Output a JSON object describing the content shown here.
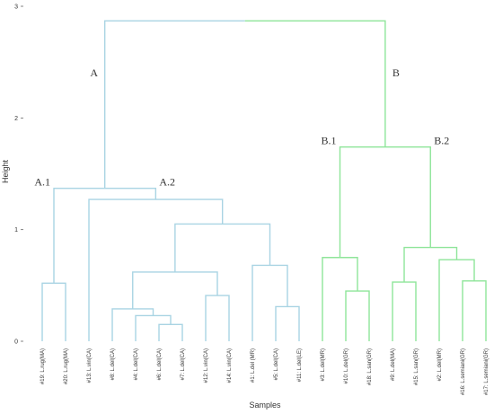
{
  "chart_data": {
    "type": "dendrogram",
    "title": "",
    "xlabel": "Samples",
    "ylabel": "Height",
    "ylim": [
      0,
      3
    ],
    "yticks": [
      0,
      1,
      2,
      3
    ],
    "grid": false,
    "colors": {
      "A": "#a9d4e3",
      "B": "#8fe59a"
    },
    "leaves": [
      "#19: L.rug(MA)",
      "#20: L.rug(MA)",
      "#13: L.vin(CA)",
      "#8: L.del(CA)",
      "#4: L.del(CA)",
      "#6: L.del(CA)",
      "#7: L.del(CA)",
      "#12: L.vin(CA)",
      "#14: L.vin(CA)",
      "#1: L.del (MR)",
      "#5: L.del(CA)",
      "#11: L.del(LE)",
      "#3: L.del(MR)",
      "#10: L.del(GR)",
      "#18: L.san(GR)",
      "#9: L.del(MA)",
      "#15: L.san(GR)",
      "#2: L.del(MR)",
      "#16: L.semiani(GR)",
      "#17: L.semiani(GR)"
    ],
    "merges": [
      {
        "id": "m1",
        "children": [
          0,
          1
        ],
        "height": 0.52,
        "cluster": "A"
      },
      {
        "id": "m2",
        "children": [
          5,
          6
        ],
        "height": 0.15,
        "cluster": "A"
      },
      {
        "id": "m3",
        "children": [
          4,
          "m2"
        ],
        "height": 0.23,
        "cluster": "A"
      },
      {
        "id": "m4",
        "children": [
          3,
          "m3"
        ],
        "height": 0.29,
        "cluster": "A"
      },
      {
        "id": "m5",
        "children": [
          7,
          8
        ],
        "height": 0.41,
        "cluster": "A"
      },
      {
        "id": "m6",
        "children": [
          "m4",
          "m5"
        ],
        "height": 0.62,
        "cluster": "A"
      },
      {
        "id": "m7",
        "children": [
          10,
          11
        ],
        "height": 0.31,
        "cluster": "A"
      },
      {
        "id": "m8",
        "children": [
          9,
          "m7"
        ],
        "height": 0.68,
        "cluster": "A"
      },
      {
        "id": "m9",
        "children": [
          "m6",
          "m8"
        ],
        "height": 1.05,
        "cluster": "A"
      },
      {
        "id": "m10",
        "children": [
          2,
          "m9"
        ],
        "height": 1.27,
        "cluster": "A"
      },
      {
        "id": "m11",
        "children": [
          "m1",
          "m10"
        ],
        "height": 1.37,
        "cluster": "A"
      },
      {
        "id": "m12",
        "children": [
          13,
          14
        ],
        "height": 0.45,
        "cluster": "B"
      },
      {
        "id": "m13",
        "children": [
          12,
          "m12"
        ],
        "height": 0.75,
        "cluster": "B"
      },
      {
        "id": "m14",
        "children": [
          15,
          16
        ],
        "height": 0.53,
        "cluster": "B"
      },
      {
        "id": "m15",
        "children": [
          18,
          19
        ],
        "height": 0.54,
        "cluster": "B"
      },
      {
        "id": "m16",
        "children": [
          17,
          "m15"
        ],
        "height": 0.73,
        "cluster": "B"
      },
      {
        "id": "m17",
        "children": [
          "m14",
          "m16"
        ],
        "height": 0.84,
        "cluster": "B"
      },
      {
        "id": "m18",
        "children": [
          "m13",
          "m17"
        ],
        "height": 1.74,
        "cluster": "B"
      },
      {
        "id": "m19",
        "children": [
          "m11",
          "m18"
        ],
        "height": 2.87,
        "cluster": "root"
      }
    ],
    "annotations": [
      {
        "text": "A",
        "merge": "m19",
        "side": "left"
      },
      {
        "text": "B",
        "merge": "m19",
        "side": "right"
      },
      {
        "text": "A.1",
        "merge": "m11",
        "side": "left"
      },
      {
        "text": "A.2",
        "merge": "m11",
        "side": "right"
      },
      {
        "text": "B.1",
        "merge": "m18",
        "side": "left"
      },
      {
        "text": "B.2",
        "merge": "m18",
        "side": "right"
      }
    ]
  }
}
